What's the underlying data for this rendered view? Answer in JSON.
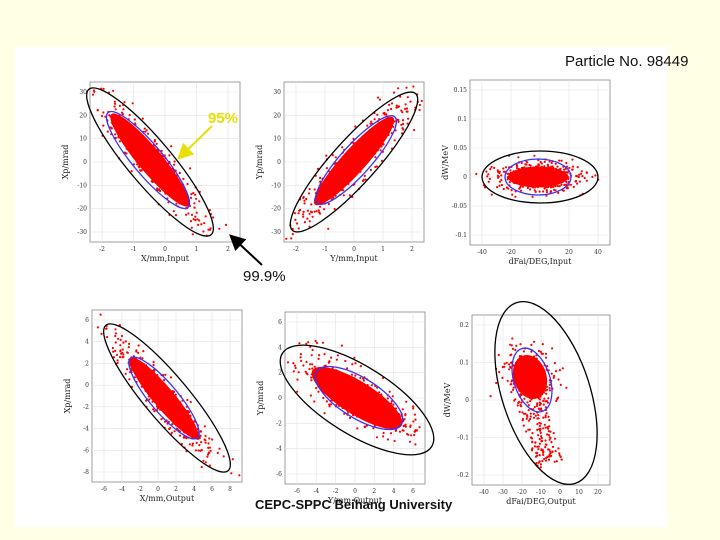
{
  "header": {
    "title": "Particle No.  98449"
  },
  "footer": {
    "text": "CEPC-SPPC Beihang University"
  },
  "annotations": {
    "label_95": "95%",
    "label_999": "99.9%"
  },
  "colors": {
    "particles": "#ff0000",
    "ellipse_95": "#3333ff",
    "ellipse_999": "#000000",
    "background": "#FFFFE6"
  },
  "chart_data": [
    {
      "type": "scatter",
      "id": "input-x",
      "xlabel": "X/mm,Input",
      "ylabel": "Xp/mrad",
      "xticks": [
        "-2",
        "-1",
        "0",
        "1",
        "2"
      ],
      "yticks": [
        "30",
        "20",
        "10",
        "0",
        "-10",
        "-20",
        "-30"
      ],
      "xlim": [
        -2.3,
        2.7
      ],
      "ylim": [
        -36,
        33
      ],
      "correlation": "negative"
    },
    {
      "type": "scatter",
      "id": "input-y",
      "xlabel": "Y/mm,Input",
      "ylabel": "Yp/mrad",
      "xticks": [
        "-2",
        "-1",
        "0",
        "1",
        "2"
      ],
      "yticks": [
        "30",
        "20",
        "10",
        "0",
        "-10",
        "-20",
        "-30"
      ],
      "xlim": [
        -2.4,
        2.4
      ],
      "ylim": [
        -36,
        33
      ],
      "correlation": "positive"
    },
    {
      "type": "scatter",
      "id": "input-phase",
      "xlabel": "dFai/DEG,Input",
      "ylabel": "dW/MeV",
      "xticks": [
        "-40",
        "-20",
        "0",
        "20",
        "40"
      ],
      "yticks": [
        "0.15",
        "0.1",
        "0.05",
        "0",
        "-0.05",
        "-0.1"
      ],
      "xlim": [
        -45,
        45
      ],
      "ylim": [
        -0.12,
        0.16
      ],
      "correlation": "none"
    },
    {
      "type": "scatter",
      "id": "output-x",
      "xlabel": "X/mm,Output",
      "ylabel": "Xp/mrad",
      "xticks": [
        "-6",
        "-4",
        "-2",
        "0",
        "2",
        "4",
        "6",
        "8"
      ],
      "yticks": [
        "6",
        "4",
        "2",
        "0",
        "-2",
        "-4",
        "-6",
        "-8"
      ],
      "xlim": [
        -7,
        9
      ],
      "ylim": [
        -9,
        7
      ],
      "correlation": "negative"
    },
    {
      "type": "scatter",
      "id": "output-y",
      "xlabel": "Y/mm,Output",
      "ylabel": "Yp/mrad",
      "xticks": [
        "-6",
        "-4",
        "-2",
        "0",
        "2",
        "4",
        "6"
      ],
      "yticks": [
        "6",
        "4",
        "2",
        "0",
        "-2",
        "-4",
        "-6"
      ],
      "xlim": [
        -7,
        7
      ],
      "ylim": [
        -7,
        7
      ],
      "correlation": "negative"
    },
    {
      "type": "scatter",
      "id": "output-phase",
      "xlabel": "dFai/DEG,Output",
      "ylabel": "dW/MeV",
      "xticks": [
        "-40",
        "-30",
        "-20",
        "-10",
        "0",
        "10",
        "20"
      ],
      "yticks": [
        "0.2",
        "0.1",
        "0",
        "-0.1",
        "-0.2"
      ],
      "xlim": [
        -45,
        25
      ],
      "ylim": [
        -0.27,
        0.27
      ],
      "correlation": "skewed"
    }
  ]
}
